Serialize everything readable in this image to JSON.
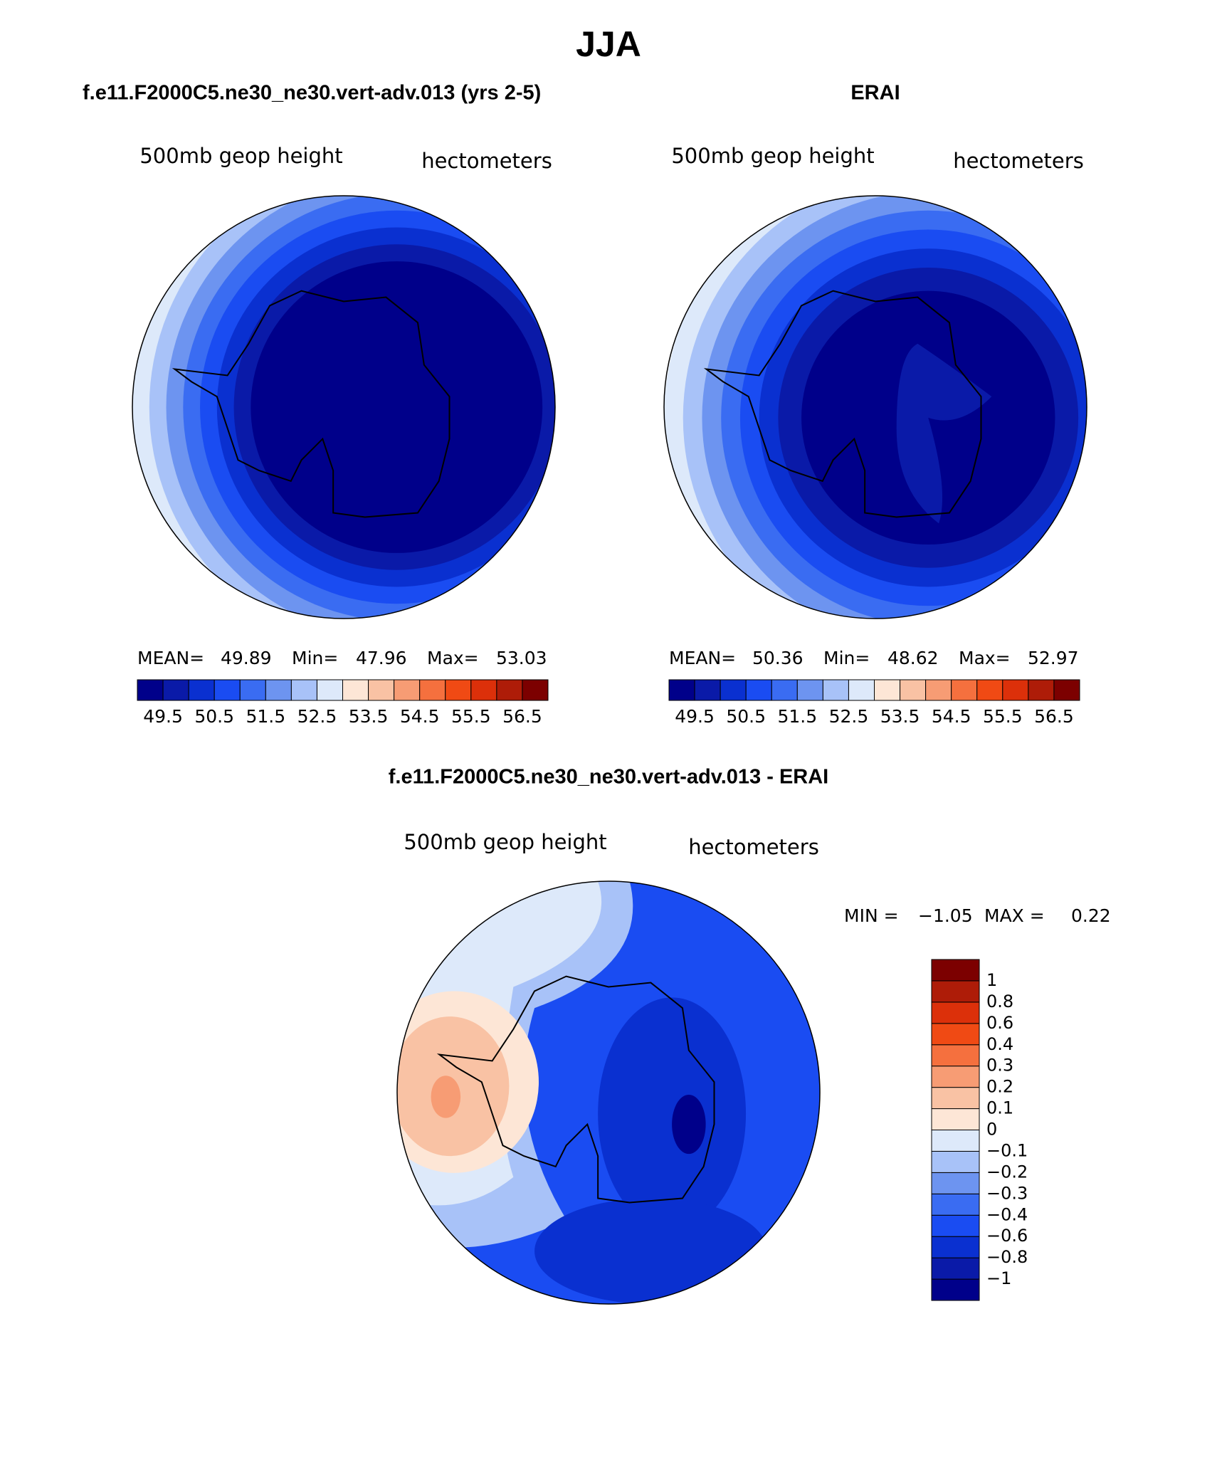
{
  "title": "JJA",
  "panels": [
    {
      "title": "f.e11.F2000C5.ne30_ne30.vert-adv.013 (yrs 2-5)",
      "field": "500mb  geop  height",
      "units": "hectometers",
      "stats": [
        {
          "label": "MEAN=",
          "value": 49.89
        },
        {
          "label": "Min=",
          "value": 47.96
        },
        {
          "label": "Max=",
          "value": 53.03
        }
      ],
      "colorbar": {
        "colors": [
          "#00008a",
          "#0a1aa8",
          "#0a30d0",
          "#1a4cf2",
          "#3a6cf2",
          "#6d94f0",
          "#a8c2f8",
          "#dde9fa",
          "#fde6d6",
          "#f9c2a4",
          "#f79c74",
          "#f5703e",
          "#f04a14",
          "#dc300a",
          "#ae1c08",
          "#7c0000"
        ],
        "labels": [
          49.5,
          50.5,
          51.5,
          52.5,
          53.5,
          54.5,
          55.5,
          56.5
        ]
      }
    },
    {
      "title": "ERAI",
      "field": "500mb  geop  height",
      "units": "hectometers",
      "stats": [
        {
          "label": "MEAN=",
          "value": 50.36
        },
        {
          "label": "Min=",
          "value": 48.62
        },
        {
          "label": "Max=",
          "value": 52.97
        }
      ],
      "colorbar": {
        "colors": [
          "#00008a",
          "#0a1aa8",
          "#0a30d0",
          "#1a4cf2",
          "#3a6cf2",
          "#6d94f0",
          "#a8c2f8",
          "#dde9fa",
          "#fde6d6",
          "#f9c2a4",
          "#f79c74",
          "#f5703e",
          "#f04a14",
          "#dc300a",
          "#ae1c08",
          "#7c0000"
        ],
        "labels": [
          49.5,
          50.5,
          51.5,
          52.5,
          53.5,
          54.5,
          55.5,
          56.5
        ]
      }
    }
  ],
  "difference": {
    "title": "f.e11.F2000C5.ne30_ne30.vert-adv.013 - ERAI",
    "field": "500mb  geop  height",
    "units": "hectometers",
    "stats": [
      {
        "label": "MIN =",
        "value": {
          "value": -1.05,
          "label": "−1.05"
        }
      },
      {
        "label": "MAX =",
        "value": 0.22
      }
    ],
    "colorbar": {
      "colors": [
        "#00008a",
        "#0a1aa8",
        "#0a30d0",
        "#1a4cf2",
        "#3a6cf2",
        "#6d94f0",
        "#a8c2f8",
        "#dde9fa",
        "#fde6d6",
        "#f9c2a4",
        "#f79c74",
        "#f5703e",
        "#f04a14",
        "#dc300a",
        "#ae1c08",
        "#7c0000"
      ],
      "labels": [
        {
          "value": -1,
          "label": "−1"
        },
        {
          "value": -0.8,
          "label": "−0.8"
        },
        {
          "value": -0.6,
          "label": "−0.6"
        },
        {
          "value": -0.4,
          "label": "−0.4"
        },
        {
          "value": -0.3,
          "label": "−0.3"
        },
        {
          "value": -0.2,
          "label": "−0.2"
        },
        {
          "value": -0.1,
          "label": "−0.1"
        },
        0,
        0.1,
        0.2,
        0.3,
        0.4,
        0.6,
        0.8,
        1
      ]
    }
  }
}
